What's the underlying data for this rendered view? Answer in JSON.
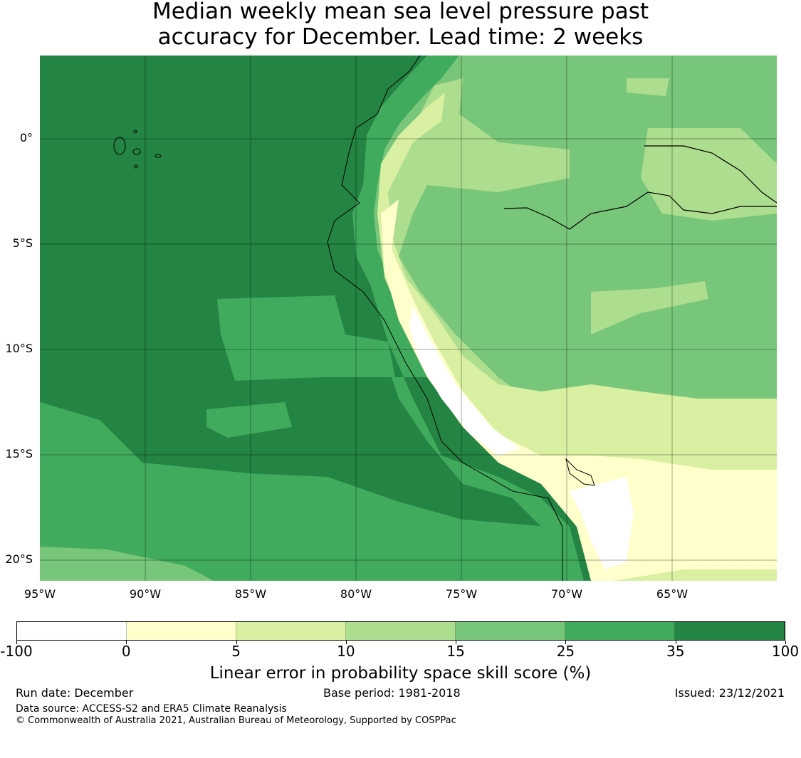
{
  "title": {
    "line1": "Median weekly mean sea level pressure past",
    "line2": "accuracy for December. Lead time: 2 weeks"
  },
  "map": {
    "lat_labels": [
      "0°",
      "5°S",
      "10°S",
      "15°S",
      "20°S"
    ],
    "lon_labels": [
      "95°W",
      "90°W",
      "85°W",
      "80°W",
      "75°W",
      "70°W",
      "65°W"
    ]
  },
  "colorbar": {
    "ticks": [
      "-100",
      "0",
      "5",
      "10",
      "15",
      "25",
      "35",
      "100"
    ],
    "colors": [
      "#ffffff",
      "#ffffcc",
      "#d9f0a3",
      "#addd8e",
      "#78c679",
      "#41ab5d",
      "#238443"
    ],
    "label": "Linear error in probability space skill score (%)"
  },
  "footer": {
    "run_date": "Run date: December",
    "base_period": "Base period: 1981-2018",
    "issued": "Issued: 23/12/2021",
    "data_source": "Data source: ACCESS-S2 and ERA5 Climate Reanalysis",
    "copyright": "© Commonwealth of Australia 2021, Australian Bureau of Meteorology, Supported by COSPPac"
  }
}
